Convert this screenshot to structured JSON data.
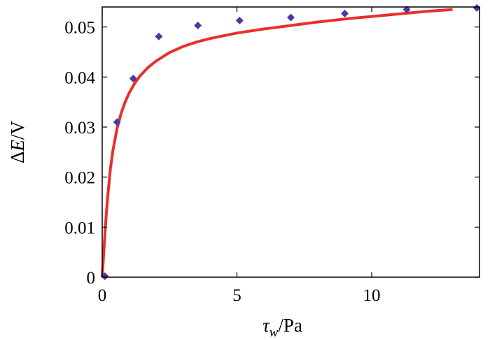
{
  "chart_data": {
    "type": "scatter",
    "xlabel": {
      "symbol": "τ",
      "subscript": "w",
      "unit": "/Pa"
    },
    "ylabel": {
      "prefix": "Δ",
      "symbol": "E",
      "unit": "/V"
    },
    "xlim": [
      0,
      14
    ],
    "ylim": [
      0,
      0.054
    ],
    "xticks": [
      0,
      5,
      10
    ],
    "xtick_labels": [
      "0",
      "5",
      "10"
    ],
    "yticks": [
      0,
      0.01,
      0.02,
      0.03,
      0.04,
      0.05
    ],
    "ytick_labels": [
      "0",
      "0.01",
      "0.02",
      "0.03",
      "0.04",
      "0.05"
    ],
    "grid": false,
    "series": [
      {
        "kind": "points",
        "marker": "diamond",
        "color": "#4a3aa8",
        "x": [
          0.1,
          0.55,
          1.15,
          2.1,
          3.55,
          5.1,
          7.0,
          9.0,
          11.3,
          13.9
        ],
        "y": [
          0.0002,
          0.031,
          0.0397,
          0.0481,
          0.0503,
          0.0513,
          0.0519,
          0.0527,
          0.0535,
          0.0538
        ]
      },
      {
        "kind": "curve",
        "color": "#e8302a",
        "x": [
          0.0,
          0.05,
          0.1,
          0.15,
          0.2,
          0.3,
          0.4,
          0.55,
          0.7,
          0.85,
          1.0,
          1.2,
          1.4,
          1.7,
          2.0,
          2.5,
          3.0,
          3.5,
          4.0,
          5.0,
          6.0,
          7.0,
          8.0,
          9.0,
          10.0,
          11.0,
          12.0,
          13.0
        ],
        "y": [
          0.0,
          0.0042,
          0.0085,
          0.0125,
          0.0158,
          0.0215,
          0.0254,
          0.0297,
          0.0327,
          0.035,
          0.0368,
          0.0387,
          0.0402,
          0.0419,
          0.0432,
          0.0449,
          0.0461,
          0.047,
          0.0477,
          0.0488,
          0.0496,
          0.0503,
          0.051,
          0.0516,
          0.0521,
          0.0526,
          0.0531,
          0.0535
        ]
      }
    ]
  }
}
